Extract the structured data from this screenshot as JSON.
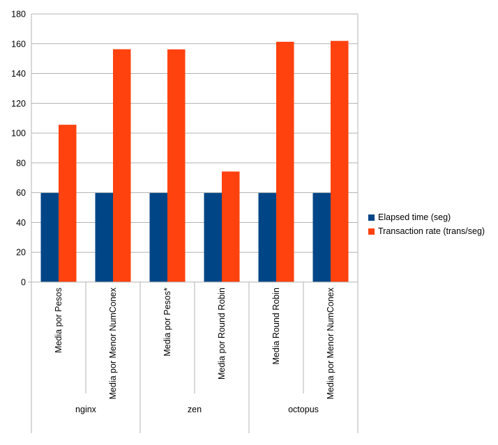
{
  "chart_data": {
    "type": "bar",
    "groups": [
      {
        "name": "nginx",
        "categories": [
          "Media por Pesos",
          "Media por Menor NumConex"
        ]
      },
      {
        "name": "zen",
        "categories": [
          "Media por Pesos*",
          "Media por Round Robin"
        ]
      },
      {
        "name": "octopus",
        "categories": [
          "Media Round Robin",
          "Media por Menor NumConex"
        ]
      }
    ],
    "categories": [
      "Media por Pesos",
      "Media por Menor NumConex",
      "Media por Pesos*",
      "Media por Round Robin",
      "Media Round Robin",
      "Media por Menor NumConex"
    ],
    "series": [
      {
        "name": "Elapsed time (seg)",
        "color": "#004586",
        "values": [
          59.8,
          59.8,
          59.8,
          59.8,
          59.8,
          59.8
        ]
      },
      {
        "name": "Transaction rate (trans/seg)",
        "color": "#ff420e",
        "values": [
          105.6,
          156.3,
          156.2,
          74.2,
          161.3,
          161.9
        ]
      }
    ],
    "ylim": [
      0,
      180
    ],
    "yticks": [
      "0",
      "20",
      "40",
      "60",
      "80",
      "100",
      "120",
      "140",
      "160",
      "180"
    ],
    "grid": true,
    "legend_position": "right",
    "title": "",
    "xlabel": "",
    "ylabel": ""
  }
}
